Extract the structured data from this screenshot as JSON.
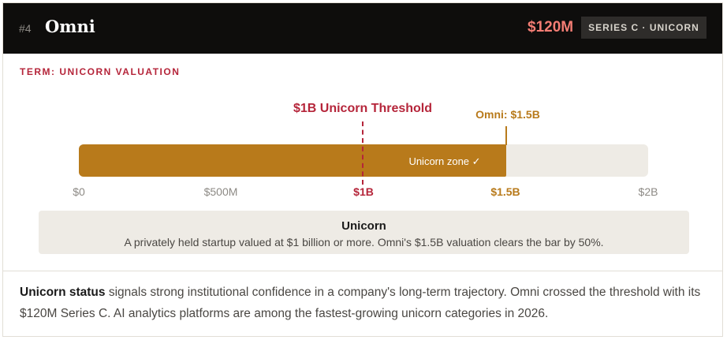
{
  "header": {
    "rank": "#4",
    "name": "Omni",
    "amount": "$120M",
    "badge": "SERIES C · UNICORN"
  },
  "term": "TERM: UNICORN VALUATION",
  "scale": {
    "threshold_label": "$1B Unicorn Threshold",
    "marker_label": "Omni: $1.5B",
    "zone_label": "Unicorn zone ✓",
    "valuation_fraction": 0.75,
    "ticks": [
      "$0",
      "$500M",
      "$1B",
      "$1.5B",
      "$2B"
    ]
  },
  "definition": {
    "title": "Unicorn",
    "text": "A privately held startup valued at $1 billion or more. Omni's $1.5B valuation clears the bar by 50%."
  },
  "paragraph": {
    "bold": "Unicorn status",
    "rest": " signals strong institutional confidence in a company's long-term trajectory. Omni crossed the threshold with its $120M Series C. AI analytics platforms are among the fastest-growing unicorn categories in 2026."
  },
  "colors": {
    "accent_red": "#b5253a",
    "accent_gold": "#b87a1b",
    "amount": "#f47d74",
    "header_bg": "#0e0d0c"
  }
}
